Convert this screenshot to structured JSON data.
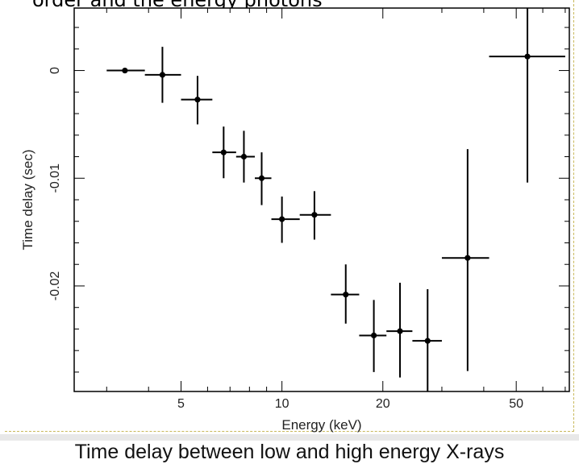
{
  "top_caption_text": "order and the energy photons",
  "caption": "Time delay between low and high energy X-rays",
  "chart_data": {
    "type": "scatter",
    "title": "",
    "xlabel": "Energy (keV)",
    "ylabel": "Time delay (sec)",
    "x_scale": "log",
    "xlim": [
      2.4,
      72
    ],
    "ylim": [
      -0.0298,
      0.0058
    ],
    "x_ticks": [
      5,
      10,
      20,
      50
    ],
    "x_tick_labels": [
      "5",
      "10",
      "20",
      "50"
    ],
    "y_ticks": [
      0,
      -0.01,
      -0.02
    ],
    "y_tick_labels": [
      "0",
      "-0.01",
      "-0.02"
    ],
    "grid": false,
    "series": [
      {
        "points": [
          {
            "x": 3.4,
            "xlo": 3.0,
            "xhi": 3.9,
            "y": 0.0,
            "ylo": 0.0,
            "yhi": 0.0
          },
          {
            "x": 4.4,
            "xlo": 3.9,
            "xhi": 5.0,
            "y": -0.0004,
            "ylo": -0.003,
            "yhi": 0.0022
          },
          {
            "x": 5.6,
            "xlo": 5.0,
            "xhi": 6.2,
            "y": -0.0027,
            "ylo": -0.005,
            "yhi": -0.0005
          },
          {
            "x": 6.7,
            "xlo": 6.2,
            "xhi": 7.3,
            "y": -0.0076,
            "ylo": -0.01,
            "yhi": -0.0052
          },
          {
            "x": 7.7,
            "xlo": 7.3,
            "xhi": 8.3,
            "y": -0.008,
            "ylo": -0.0104,
            "yhi": -0.0056
          },
          {
            "x": 8.7,
            "xlo": 8.3,
            "xhi": 9.3,
            "y": -0.01,
            "ylo": -0.0125,
            "yhi": -0.0076
          },
          {
            "x": 10.0,
            "xlo": 9.3,
            "xhi": 11.3,
            "y": -0.0138,
            "ylo": -0.016,
            "yhi": -0.0117
          },
          {
            "x": 12.5,
            "xlo": 11.3,
            "xhi": 14.0,
            "y": -0.0134,
            "ylo": -0.0157,
            "yhi": -0.0112
          },
          {
            "x": 15.5,
            "xlo": 14.0,
            "xhi": 17.0,
            "y": -0.0208,
            "ylo": -0.0235,
            "yhi": -0.018
          },
          {
            "x": 18.8,
            "xlo": 17.0,
            "xhi": 20.5,
            "y": -0.0246,
            "ylo": -0.028,
            "yhi": -0.0213
          },
          {
            "x": 22.5,
            "xlo": 20.5,
            "xhi": 24.5,
            "y": -0.0242,
            "ylo": -0.0285,
            "yhi": -0.0197
          },
          {
            "x": 27.2,
            "xlo": 24.5,
            "xhi": 30.0,
            "y": -0.0251,
            "ylo": -0.0298,
            "yhi": -0.0203
          },
          {
            "x": 35.8,
            "xlo": 30.0,
            "xhi": 41.5,
            "y": -0.0174,
            "ylo": -0.0279,
            "yhi": -0.0073
          },
          {
            "x": 54.0,
            "xlo": 41.5,
            "xhi": 70.0,
            "y": 0.0013,
            "ylo": -0.0104,
            "yhi": 0.0058
          }
        ]
      }
    ]
  }
}
